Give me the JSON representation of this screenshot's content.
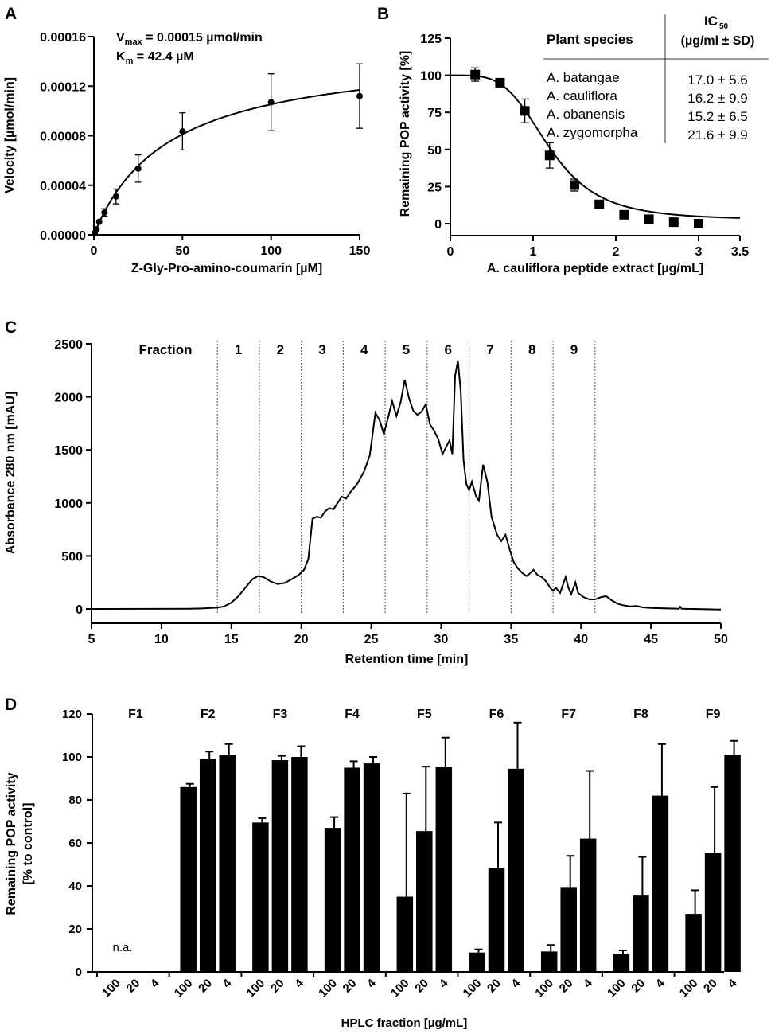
{
  "chart_data": [
    {
      "panel": "A",
      "type": "scatter",
      "xlabel": "Z-Gly-Pro-amino-coumarin [µM]",
      "ylabel": "Velocity [µmol/min]",
      "xlim": [
        0,
        150
      ],
      "ylim": [
        0,
        0.00016
      ],
      "x_ticks": [
        "0",
        "50",
        "100",
        "150"
      ],
      "y_ticks": [
        "0.00000",
        "0.00004",
        "0.00008",
        "0.00012",
        "0.00016"
      ],
      "annotation": {
        "vmax_label": "V",
        "vmax_sub": "max",
        "vmax_value": " = 0.00015 µmol/min",
        "km_label": "K",
        "km_sub": "m",
        "km_value": " = 42.4 µM"
      },
      "fit": {
        "model": "michaelis-menten",
        "vmax": 0.00015,
        "km": 42.4
      },
      "points": [
        {
          "x": 0.5,
          "y": 1.5e-06,
          "err": 5e-07
        },
        {
          "x": 1.5,
          "y": 4.5e-06,
          "err": 1e-06
        },
        {
          "x": 3,
          "y": 1.05e-05,
          "err": 1.5e-06
        },
        {
          "x": 6,
          "y": 1.8e-05,
          "err": 3e-06
        },
        {
          "x": 12.5,
          "y": 3.1e-05,
          "err": 6e-06
        },
        {
          "x": 25,
          "y": 5.35e-05,
          "err": 1.1e-05
        },
        {
          "x": 50,
          "y": 8.35e-05,
          "err": 1.5e-05
        },
        {
          "x": 100,
          "y": 0.000107,
          "err": 2.3e-05
        },
        {
          "x": 150,
          "y": 0.000112,
          "err": 2.6e-05
        }
      ]
    },
    {
      "panel": "B",
      "type": "scatter",
      "xlabel": "A. cauliflora peptide extract [µg/mL]",
      "ylabel": "Remaining POP activity [%]",
      "xlim": [
        0,
        3.5
      ],
      "ylim": [
        0,
        125
      ],
      "x_ticks": [
        "0",
        "1",
        "2",
        "3",
        "3.5"
      ],
      "x_tick_values": [
        0,
        1,
        2,
        3,
        3.5
      ],
      "y_ticks": [
        "0",
        "25",
        "50",
        "75",
        "100",
        "125"
      ],
      "fit": {
        "model": "4pl",
        "top": 100,
        "bottom": 2.5,
        "ic50": 1.2,
        "hill": 4
      },
      "points": [
        {
          "x": 0.3,
          "y": 100.5,
          "err": 4.5
        },
        {
          "x": 0.6,
          "y": 95,
          "err": 2
        },
        {
          "x": 0.9,
          "y": 76,
          "err": 8
        },
        {
          "x": 1.2,
          "y": 46,
          "err": 8.5
        },
        {
          "x": 1.5,
          "y": 26,
          "err": 4
        },
        {
          "x": 1.8,
          "y": 13,
          "err": 2
        },
        {
          "x": 2.1,
          "y": 6,
          "err": 1
        },
        {
          "x": 2.4,
          "y": 3,
          "err": 0.5
        },
        {
          "x": 2.7,
          "y": 1,
          "err": 0.5
        },
        {
          "x": 3.0,
          "y": 0,
          "err": 0.5
        }
      ],
      "table": {
        "col1_header": "Plant species",
        "col2_header_line1": "IC",
        "col2_header_sub": "50",
        "col2_header_line2": "(µg/ml ± SD)",
        "rows": [
          {
            "species": "A. batangae",
            "ic50": "17.0 ± 5.6"
          },
          {
            "species": "A. cauliflora",
            "ic50": "16.2 ± 9.9"
          },
          {
            "species": "A. obanensis",
            "ic50": "15.2 ± 6.5"
          },
          {
            "species": "A. zygomorpha",
            "ic50": "21.6 ± 9.9"
          }
        ]
      }
    },
    {
      "panel": "C",
      "type": "line",
      "xlabel": "Retention time [min]",
      "ylabel": "Absorbance 280 nm [mAU]",
      "xlim": [
        5,
        50
      ],
      "ylim": [
        0,
        2500
      ],
      "x_ticks": [
        "5",
        "10",
        "15",
        "20",
        "25",
        "30",
        "35",
        "40",
        "45",
        "50"
      ],
      "y_ticks": [
        "0",
        "500",
        "1000",
        "1500",
        "2000",
        "2500"
      ],
      "fraction_title": "Fraction",
      "fraction_boundaries": [
        14,
        17,
        20,
        23,
        26,
        29,
        32,
        35,
        38,
        41
      ],
      "fraction_labels": [
        "1",
        "2",
        "3",
        "4",
        "5",
        "6",
        "7",
        "8",
        "9"
      ],
      "trace": [
        [
          5,
          0
        ],
        [
          12,
          2
        ],
        [
          13,
          5
        ],
        [
          14,
          12
        ],
        [
          14.5,
          25
        ],
        [
          15,
          60
        ],
        [
          15.5,
          120
        ],
        [
          16,
          200
        ],
        [
          16.5,
          280
        ],
        [
          16.9,
          310
        ],
        [
          17.3,
          300
        ],
        [
          17.8,
          260
        ],
        [
          18.3,
          235
        ],
        [
          18.8,
          245
        ],
        [
          19.3,
          280
        ],
        [
          19.8,
          320
        ],
        [
          20.2,
          370
        ],
        [
          20.5,
          470
        ],
        [
          20.8,
          850
        ],
        [
          21.1,
          870
        ],
        [
          21.4,
          860
        ],
        [
          21.7,
          920
        ],
        [
          22,
          950
        ],
        [
          22.3,
          940
        ],
        [
          22.6,
          1000
        ],
        [
          22.9,
          1060
        ],
        [
          23.2,
          1040
        ],
        [
          23.5,
          1100
        ],
        [
          24,
          1180
        ],
        [
          24.5,
          1300
        ],
        [
          24.9,
          1450
        ],
        [
          25.3,
          1850
        ],
        [
          25.6,
          1780
        ],
        [
          25.9,
          1650
        ],
        [
          26.2,
          1800
        ],
        [
          26.5,
          1960
        ],
        [
          26.8,
          1820
        ],
        [
          27.1,
          1950
        ],
        [
          27.4,
          2160
        ],
        [
          27.7,
          1990
        ],
        [
          28,
          1870
        ],
        [
          28.3,
          1830
        ],
        [
          28.6,
          1860
        ],
        [
          28.9,
          1930
        ],
        [
          29.2,
          1740
        ],
        [
          29.5,
          1680
        ],
        [
          29.8,
          1600
        ],
        [
          30.1,
          1460
        ],
        [
          30.4,
          1540
        ],
        [
          30.6,
          1590
        ],
        [
          30.8,
          1460
        ],
        [
          31,
          2200
        ],
        [
          31.2,
          2340
        ],
        [
          31.4,
          2050
        ],
        [
          31.6,
          1400
        ],
        [
          31.8,
          1180
        ],
        [
          32,
          1120
        ],
        [
          32.2,
          1200
        ],
        [
          32.5,
          1060
        ],
        [
          32.7,
          1020
        ],
        [
          33,
          1360
        ],
        [
          33.3,
          1200
        ],
        [
          33.6,
          870
        ],
        [
          34,
          700
        ],
        [
          34.3,
          640
        ],
        [
          34.6,
          700
        ],
        [
          34.9,
          560
        ],
        [
          35.2,
          440
        ],
        [
          35.5,
          380
        ],
        [
          35.8,
          340
        ],
        [
          36.1,
          310
        ],
        [
          36.3,
          330
        ],
        [
          36.6,
          370
        ],
        [
          36.9,
          320
        ],
        [
          37.2,
          300
        ],
        [
          37.5,
          260
        ],
        [
          37.8,
          200
        ],
        [
          38,
          170
        ],
        [
          38.2,
          200
        ],
        [
          38.5,
          150
        ],
        [
          38.9,
          300
        ],
        [
          39.1,
          200
        ],
        [
          39.3,
          140
        ],
        [
          39.6,
          250
        ],
        [
          39.8,
          150
        ],
        [
          40.2,
          110
        ],
        [
          40.6,
          90
        ],
        [
          41,
          90
        ],
        [
          41.4,
          110
        ],
        [
          41.8,
          120
        ],
        [
          42.2,
          80
        ],
        [
          42.6,
          50
        ],
        [
          43,
          35
        ],
        [
          43.5,
          25
        ],
        [
          44,
          28
        ],
        [
          44.4,
          15
        ],
        [
          45,
          10
        ],
        [
          46,
          5
        ],
        [
          47,
          2
        ],
        [
          47.1,
          20
        ],
        [
          47.2,
          2
        ],
        [
          50,
          -5
        ]
      ]
    },
    {
      "panel": "D",
      "type": "bar",
      "xlabel": "HPLC fraction [µg/mL]",
      "ylabel_line1": "Remaining POP activity",
      "ylabel_line2": "[% to control]",
      "ylim": [
        0,
        120
      ],
      "y_ticks": [
        "0",
        "20",
        "40",
        "60",
        "80",
        "100",
        "120"
      ],
      "concentrations": [
        "100",
        "20",
        "4"
      ],
      "na_label": "n.a.",
      "series": [
        {
          "name": "F1",
          "values": [
            null,
            null,
            null
          ],
          "errors": [
            null,
            null,
            null
          ]
        },
        {
          "name": "F2",
          "values": [
            86,
            99,
            101
          ],
          "errors": [
            1.5,
            3.5,
            5
          ]
        },
        {
          "name": "F3",
          "values": [
            69.5,
            98.5,
            100
          ],
          "errors": [
            2,
            2,
            5
          ]
        },
        {
          "name": "F4",
          "values": [
            67,
            95,
            97
          ],
          "errors": [
            5,
            3,
            3
          ]
        },
        {
          "name": "F5",
          "values": [
            35,
            65.5,
            95.5
          ],
          "errors": [
            48,
            30,
            13.5
          ]
        },
        {
          "name": "F6",
          "values": [
            9,
            48.5,
            94.5
          ],
          "errors": [
            1.5,
            21,
            21.5
          ]
        },
        {
          "name": "F7",
          "values": [
            9.5,
            39.5,
            62
          ],
          "errors": [
            3,
            14.5,
            31.5
          ]
        },
        {
          "name": "F8",
          "values": [
            8.5,
            35.5,
            82
          ],
          "errors": [
            1.5,
            18,
            24
          ]
        },
        {
          "name": "F9",
          "values": [
            27,
            55.5,
            101
          ],
          "errors": [
            11,
            30.5,
            6.5
          ]
        }
      ]
    }
  ]
}
